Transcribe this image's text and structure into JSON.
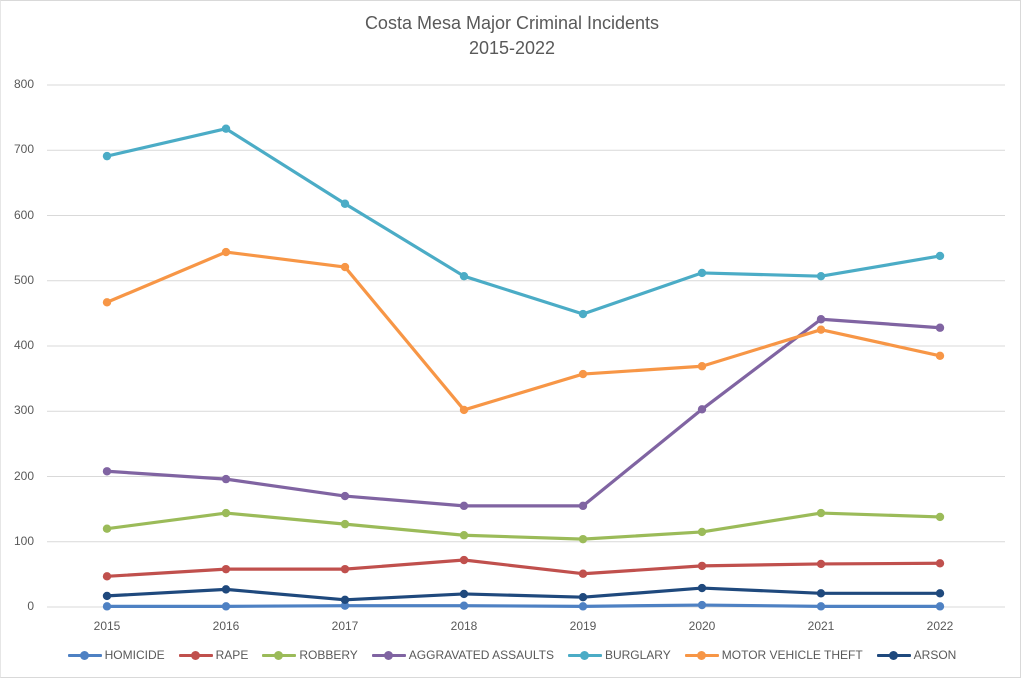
{
  "chart_data": {
    "type": "line",
    "title": "Costa Mesa Major Criminal Incidents",
    "subtitle": "2015-2022",
    "xlabel": "",
    "ylabel": "",
    "ylim": [
      0,
      800
    ],
    "yticks": [
      "0",
      "100",
      "200",
      "300",
      "400",
      "500",
      "600",
      "700",
      "800"
    ],
    "ytick_values": [
      0,
      100,
      200,
      300,
      400,
      500,
      600,
      700,
      800
    ],
    "categories": [
      "2015",
      "2016",
      "2017",
      "2018",
      "2019",
      "2020",
      "2021",
      "2022"
    ],
    "grid": true,
    "legend_position": "bottom",
    "series": [
      {
        "name": "HOMICIDE",
        "color": "#4e81c3",
        "values": [
          1,
          1,
          2,
          2,
          1,
          3,
          1,
          1
        ]
      },
      {
        "name": "RAPE",
        "color": "#c0504d",
        "values": [
          47,
          58,
          58,
          72,
          51,
          63,
          66,
          67
        ]
      },
      {
        "name": "ROBBERY",
        "color": "#9bbb59",
        "values": [
          120,
          144,
          127,
          110,
          104,
          115,
          144,
          138
        ]
      },
      {
        "name": "AGGRAVATED ASSAULTS",
        "color": "#8064a2",
        "values": [
          208,
          196,
          170,
          155,
          155,
          303,
          441,
          428
        ]
      },
      {
        "name": "BURGLARY",
        "color": "#4bacc6",
        "values": [
          691,
          733,
          618,
          507,
          449,
          512,
          507,
          538
        ]
      },
      {
        "name": "MOTOR VEHICLE THEFT",
        "color": "#f79646",
        "values": [
          467,
          544,
          521,
          302,
          357,
          369,
          425,
          385
        ]
      },
      {
        "name": "ARSON",
        "color": "#1f497d",
        "values": [
          17,
          27,
          11,
          20,
          15,
          29,
          21,
          21
        ]
      }
    ]
  }
}
